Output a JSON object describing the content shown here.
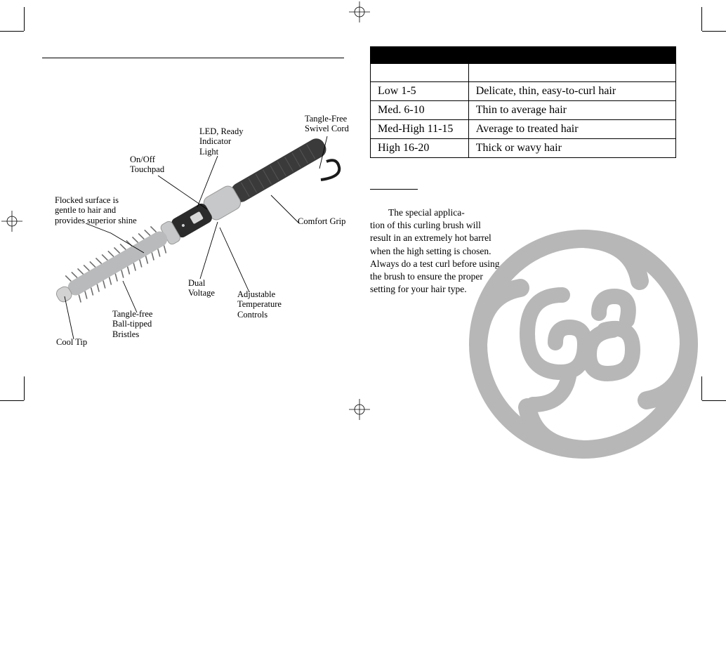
{
  "diagram": {
    "labels": {
      "swivel_cord": "Tangle-Free\nSwivel Cord",
      "led": "LED, Ready\nIndicator\nLight",
      "touchpad": "On/Off\nTouchpad",
      "flocked": "Flocked surface is\ngentle to hair and\nprovides superior shine",
      "grip": "Comfort Grip",
      "dual_voltage": "Dual\nVoltage",
      "temp": "Adjustable\nTemperature\nControls",
      "bristles": "Tangle-free\nBall-tipped\nBristles",
      "cool_tip": "Cool Tip"
    },
    "colors": {
      "barrel": "#b9babb",
      "bristle": "#6d6d6d",
      "grip_dark": "#3a3a3a",
      "grip_silver": "#c7c8c9",
      "line": "#000000"
    }
  },
  "table": {
    "rows": [
      {
        "setting": "Low 1-5",
        "hair": "Delicate, thin, easy-to-curl hair"
      },
      {
        "setting": "Med. 6-10",
        "hair": "Thin to average hair"
      },
      {
        "setting": "Med-High 11-15",
        "hair": "Average to treated hair"
      },
      {
        "setting": "High 16-20",
        "hair": "Thick or wavy hair"
      }
    ],
    "col1_width": 140,
    "col2_width": 296,
    "font_size": 16,
    "border_color": "#000000",
    "header_bg": "#000000"
  },
  "caution": {
    "body": "The special applica-\ntion of this curling brush will result in an extremely hot barrel when the high setting is chosen. Always do a test curl before using the  brush to ensure the proper setting for your hair type."
  },
  "logo": {
    "color": "#b7b7b7",
    "stroke_width": 26
  }
}
